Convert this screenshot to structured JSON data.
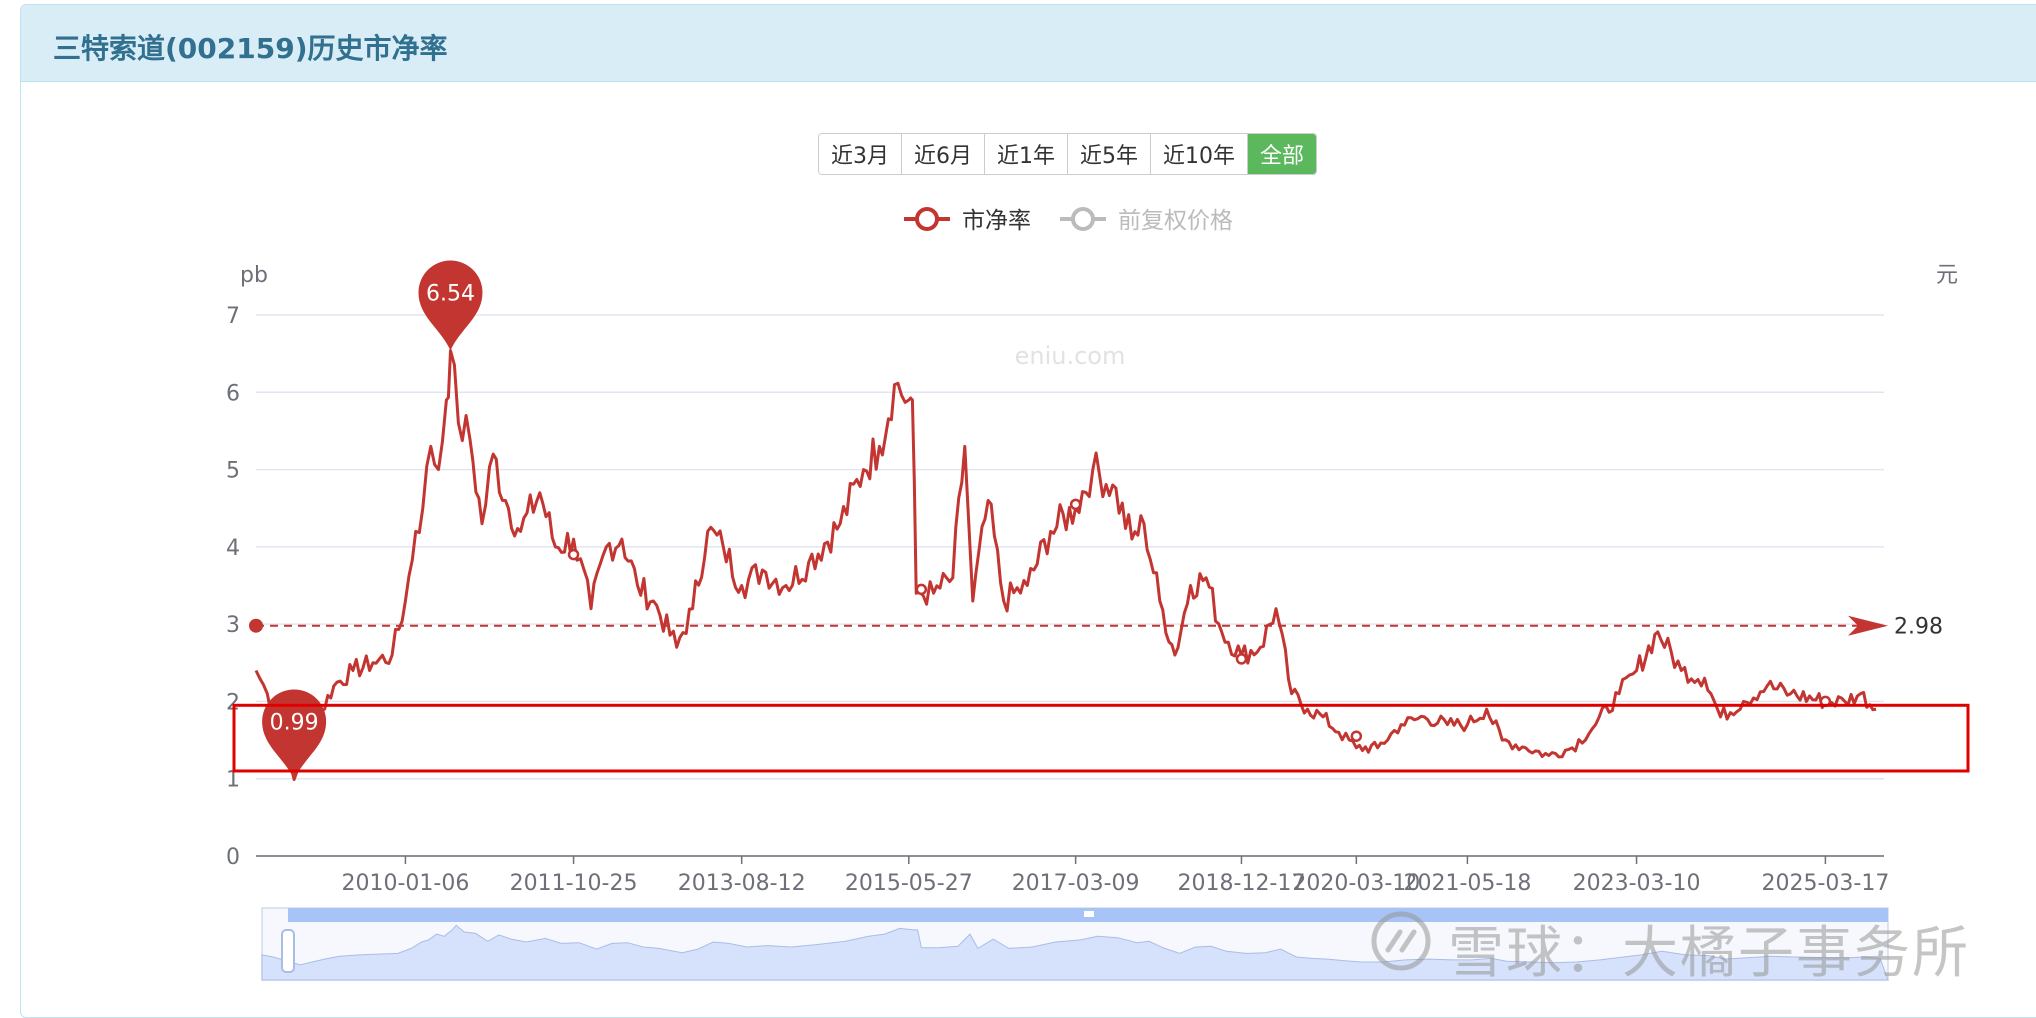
{
  "title": "三特索道(002159)历史市净率",
  "range_buttons": [
    {
      "label": "近3月",
      "active": false
    },
    {
      "label": "近6月",
      "active": false
    },
    {
      "label": "近1年",
      "active": false
    },
    {
      "label": "近5年",
      "active": false
    },
    {
      "label": "近10年",
      "active": false
    },
    {
      "label": "全部",
      "active": true
    }
  ],
  "colors": {
    "pb": "#c23531",
    "price": "#bbbbbb",
    "highlight": "#e00000",
    "grid": "#e0e6f1",
    "axis": "#6e7079",
    "zoom_fill": "#d6e2fb",
    "zoom_bar": "#a8c3f5"
  },
  "watermark_site": "eniu.com",
  "watermark_credit": "雪球：大橘子事务所",
  "chart_data": {
    "type": "line",
    "legend": [
      "市净率",
      "前复权价格"
    ],
    "legend_placement": "top-center",
    "y_left_label": "pb",
    "y_right_label": "元",
    "ylim": [
      0,
      7
    ],
    "yticks": [
      "0",
      "1",
      "2",
      "3",
      "4",
      "5",
      "6",
      "7"
    ],
    "x_ticks": [
      "2010-01-06",
      "2011-10-25",
      "2013-08-12",
      "2015-05-27",
      "2017-03-09",
      "2018-12-17",
      "2020-03-10",
      "2021-05-18",
      "2023-03-10",
      "2025-03-17"
    ],
    "x_range": [
      "2008-06-01",
      "2025-11-01"
    ],
    "max_marker": {
      "label": "6.54",
      "date": "2010-07-01",
      "value": 6.54
    },
    "min_marker": {
      "label": "0.99",
      "date": "2008-10-28",
      "value": 0.99
    },
    "average_line": {
      "label": "2.98",
      "value": 2.98
    },
    "highlight_band": [
      1.1,
      1.95
    ],
    "series": [
      {
        "name": "市净率",
        "points": [
          [
            "2008-06-01",
            2.4
          ],
          [
            "2008-07-15",
            2.1
          ],
          [
            "2008-09-01",
            1.6
          ],
          [
            "2008-10-28",
            0.99
          ],
          [
            "2008-12-15",
            1.4
          ],
          [
            "2009-02-01",
            1.8
          ],
          [
            "2009-04-01",
            2.2
          ],
          [
            "2009-06-15",
            2.4
          ],
          [
            "2009-09-01",
            2.5
          ],
          [
            "2009-11-15",
            2.6
          ],
          [
            "2010-01-06",
            3.3
          ],
          [
            "2010-02-15",
            4.2
          ],
          [
            "2010-03-15",
            4.5
          ],
          [
            "2010-04-15",
            5.3
          ],
          [
            "2010-05-15",
            5.0
          ],
          [
            "2010-06-15",
            5.9
          ],
          [
            "2010-07-01",
            6.54
          ],
          [
            "2010-08-01",
            5.6
          ],
          [
            "2010-09-15",
            5.4
          ],
          [
            "2010-11-01",
            4.3
          ],
          [
            "2010-12-15",
            5.2
          ],
          [
            "2011-02-01",
            4.6
          ],
          [
            "2011-04-01",
            4.2
          ],
          [
            "2011-06-15",
            4.7
          ],
          [
            "2011-08-15",
            4.0
          ],
          [
            "2011-10-25",
            4.1
          ],
          [
            "2012-01-01",
            3.2
          ],
          [
            "2012-03-01",
            4.0
          ],
          [
            "2012-05-01",
            4.1
          ],
          [
            "2012-07-01",
            3.5
          ],
          [
            "2012-09-01",
            3.3
          ],
          [
            "2012-12-01",
            2.7
          ],
          [
            "2013-02-01",
            3.2
          ],
          [
            "2013-04-01",
            4.2
          ],
          [
            "2013-06-01",
            4.0
          ],
          [
            "2013-08-12",
            3.5
          ],
          [
            "2013-11-01",
            3.7
          ],
          [
            "2014-02-01",
            3.5
          ],
          [
            "2014-05-01",
            3.8
          ],
          [
            "2014-09-01",
            4.3
          ],
          [
            "2014-12-01",
            5.0
          ],
          [
            "2015-02-01",
            5.3
          ],
          [
            "2015-04-01",
            6.1
          ],
          [
            "2015-05-27",
            5.9
          ],
          [
            "2015-06-10",
            5.9
          ],
          [
            "2015-06-25",
            3.4
          ],
          [
            "2015-09-01",
            3.4
          ],
          [
            "2015-11-15",
            3.6
          ],
          [
            "2016-01-01",
            5.3
          ],
          [
            "2016-02-01",
            3.3
          ],
          [
            "2016-04-01",
            4.6
          ],
          [
            "2016-06-01",
            3.3
          ],
          [
            "2016-09-01",
            3.5
          ],
          [
            "2016-12-01",
            4.2
          ],
          [
            "2017-03-09",
            4.5
          ],
          [
            "2017-05-15",
            5.0
          ],
          [
            "2017-08-01",
            4.8
          ],
          [
            "2017-10-15",
            4.1
          ],
          [
            "2017-12-01",
            4.3
          ],
          [
            "2018-02-01",
            3.3
          ],
          [
            "2018-04-01",
            2.6
          ],
          [
            "2018-06-01",
            3.5
          ],
          [
            "2018-08-01",
            3.6
          ],
          [
            "2018-10-01",
            2.9
          ],
          [
            "2018-12-17",
            2.6
          ],
          [
            "2019-03-01",
            2.7
          ],
          [
            "2019-05-01",
            3.2
          ],
          [
            "2019-07-01",
            2.1
          ],
          [
            "2019-09-01",
            1.9
          ],
          [
            "2019-11-01",
            1.8
          ],
          [
            "2020-01-01",
            1.6
          ],
          [
            "2020-03-10",
            1.4
          ],
          [
            "2020-06-01",
            1.4
          ],
          [
            "2020-09-01",
            1.7
          ],
          [
            "2020-12-01",
            1.8
          ],
          [
            "2021-03-01",
            1.7
          ],
          [
            "2021-05-18",
            1.7
          ],
          [
            "2021-08-01",
            1.9
          ],
          [
            "2021-10-01",
            1.5
          ],
          [
            "2022-01-01",
            1.4
          ],
          [
            "2022-04-01",
            1.3
          ],
          [
            "2022-07-01",
            1.4
          ],
          [
            "2022-10-01",
            1.7
          ],
          [
            "2023-01-01",
            2.1
          ],
          [
            "2023-03-10",
            2.4
          ],
          [
            "2023-06-01",
            2.9
          ],
          [
            "2023-09-01",
            2.4
          ],
          [
            "2023-12-01",
            2.3
          ],
          [
            "2024-02-01",
            1.8
          ],
          [
            "2024-05-01",
            2.0
          ],
          [
            "2024-08-01",
            2.2
          ],
          [
            "2024-11-01",
            2.1
          ],
          [
            "2025-03-17",
            2.0
          ],
          [
            "2025-06-01",
            2.0
          ],
          [
            "2025-08-01",
            2.1
          ],
          [
            "2025-10-01",
            1.9
          ]
        ]
      },
      {
        "name": "前复权价格",
        "points": []
      }
    ]
  }
}
